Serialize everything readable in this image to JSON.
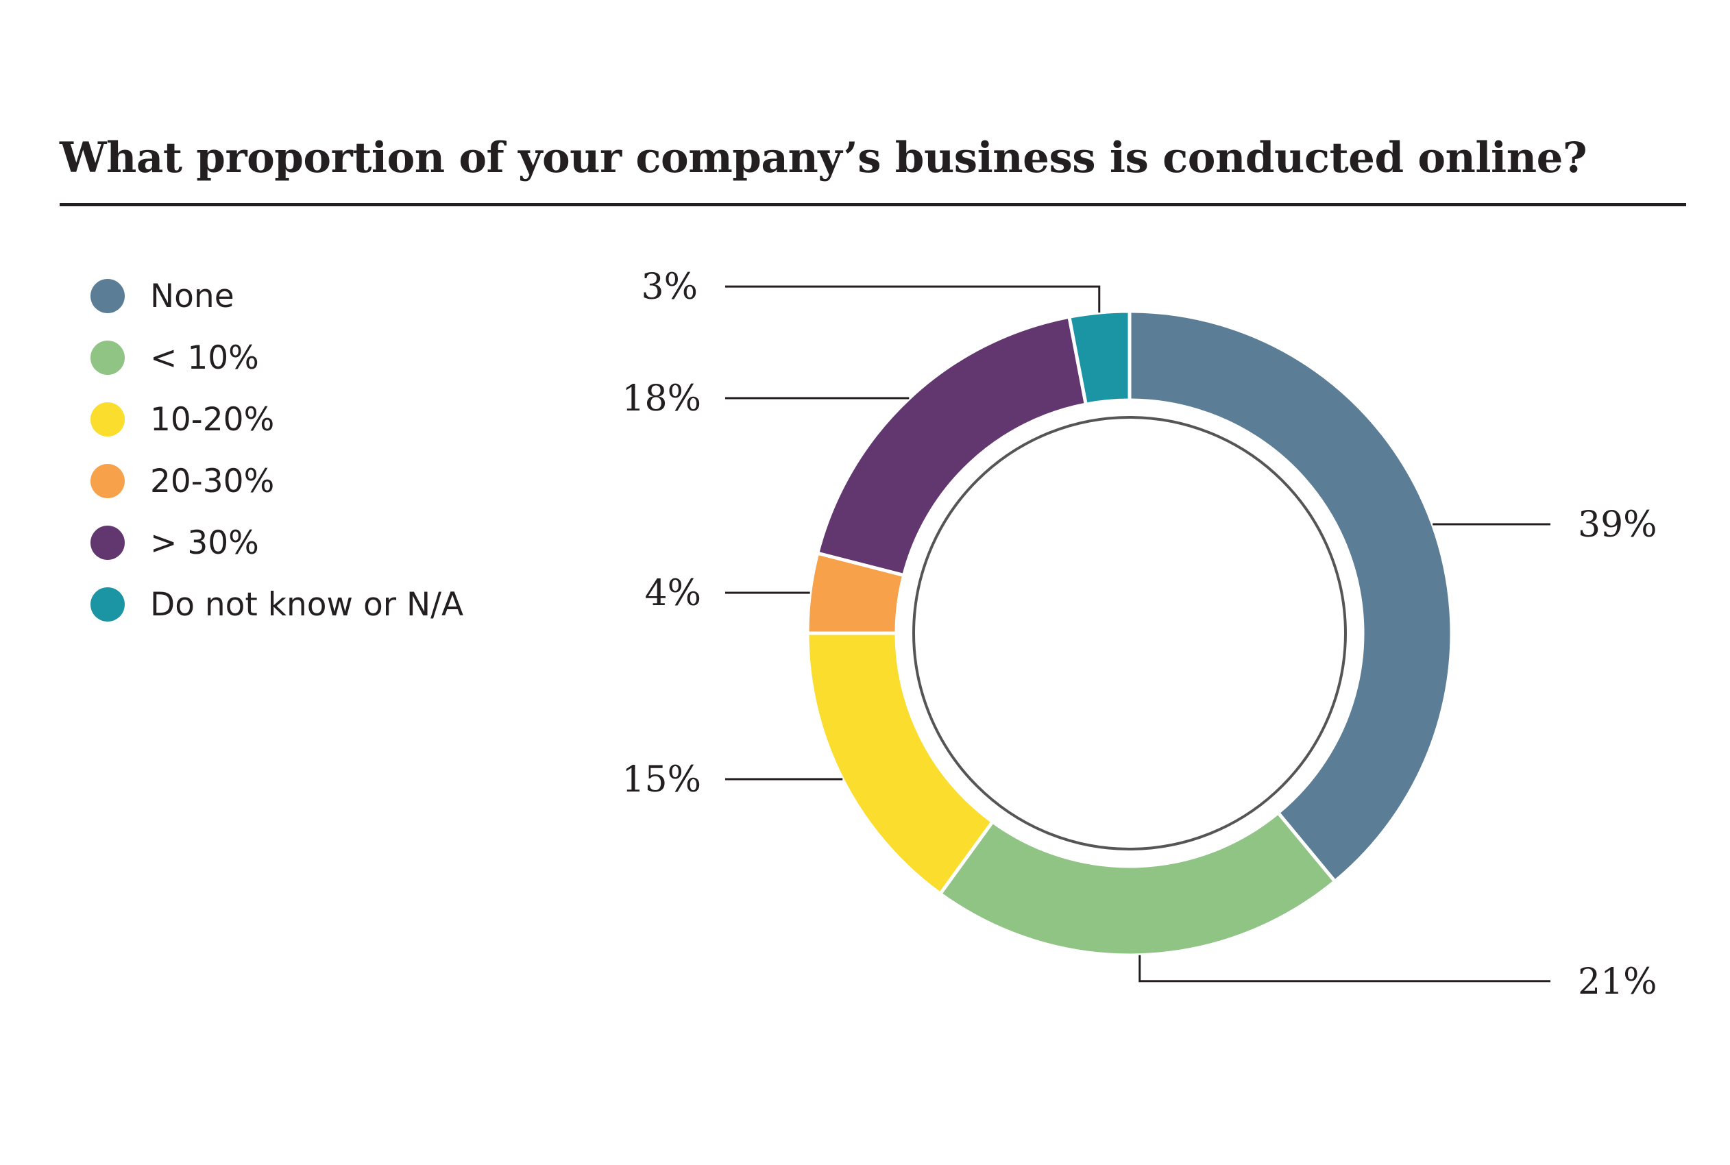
{
  "chart_data": {
    "type": "pie",
    "title": "What proportion of your company’s business is conducted online?",
    "categories": [
      "None",
      "< 10%",
      "10-20%",
      "20-30%",
      "> 30%",
      "Do not know or N/A"
    ],
    "values": [
      39,
      21,
      15,
      4,
      18,
      3
    ],
    "data_labels": [
      "39%",
      "21%",
      "15%",
      "4%",
      "18%",
      "3%"
    ],
    "colors": [
      "#5b7d96",
      "#8fc485",
      "#fbdd2e",
      "#f7a14b",
      "#623770",
      "#1b94a3"
    ],
    "legend": "left",
    "style": "donut"
  }
}
